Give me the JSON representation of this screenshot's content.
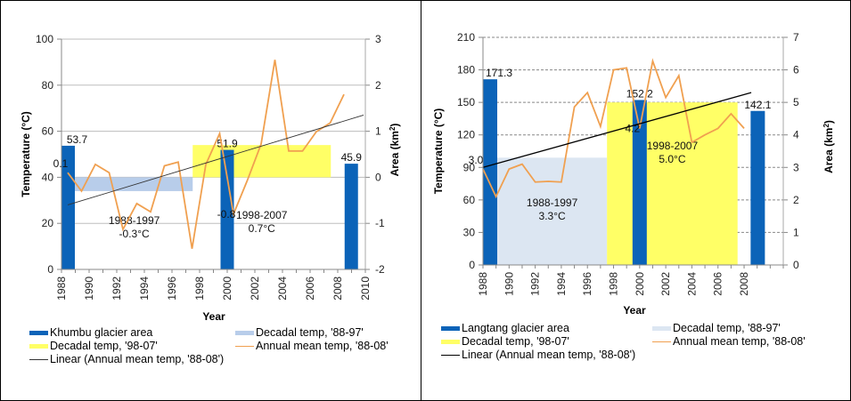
{
  "chart_data": [
    {
      "type": "bar",
      "id": "khumbu",
      "title": "",
      "xlabel": "Year",
      "ylabel": "Temperature (°C)",
      "y2label": "Area (km²)",
      "ylim": [
        0,
        100
      ],
      "y2lim": [
        -2,
        3
      ],
      "xlim": [
        1988,
        2010
      ],
      "grid": true,
      "grid_style": "solid",
      "yticks": [
        "0",
        "20",
        "40",
        "60",
        "80",
        "100"
      ],
      "y2ticks": [
        "-2",
        "-1",
        "0",
        "1",
        "2",
        "3"
      ],
      "xticks": [
        "1988",
        "1990",
        "1992",
        "1994",
        "1996",
        "1998",
        "2000",
        "2002",
        "2004",
        "2006",
        "2008",
        "2010"
      ],
      "legend_position": "bottom",
      "series": [
        {
          "name": "Khumbu glacier area",
          "kind": "bar",
          "axis": "left",
          "color": "#0b63b8",
          "x": [
            1988,
            2000,
            2009
          ],
          "values": [
            53.7,
            51.9,
            45.9
          ],
          "labels": [
            "53.7",
            "51.9",
            "45.9"
          ]
        },
        {
          "name": "Decadal temp, '88-97'",
          "kind": "band",
          "axis": "right",
          "color": "#b8cdea",
          "x_range": [
            1988,
            1997.5
          ],
          "value": -0.3,
          "annotation": [
            "1988-1997",
            "-0.3°C"
          ]
        },
        {
          "name": "Decadal temp, '98-07'",
          "kind": "band",
          "axis": "right",
          "color": "#ffff66",
          "x_range": [
            1997.5,
            2007.5
          ],
          "value": 0.7,
          "annotation": [
            "1998-2007",
            "0.7°C"
          ]
        },
        {
          "name": "Annual mean temp, '88-08'",
          "kind": "line",
          "axis": "right",
          "color": "#f0a050",
          "x": [
            1988,
            1989,
            1990,
            1991,
            1992,
            1993,
            1994,
            1995,
            1996,
            1997,
            1998,
            1999,
            2000,
            2001,
            2002,
            2003,
            2004,
            2005,
            2006,
            2007,
            2008
          ],
          "values": [
            0.1,
            -0.3,
            0.28,
            0.1,
            -1.13,
            -0.57,
            -0.75,
            0.25,
            0.33,
            -1.55,
            0.28,
            0.95,
            -0.8,
            -0.07,
            0.72,
            2.55,
            0.57,
            0.57,
            0.99,
            1.18,
            1.8
          ],
          "point_labels": [
            {
              "x": 1988,
              "label": "0.1"
            },
            {
              "x": 2000,
              "label": "-0.8"
            }
          ]
        },
        {
          "name": "Linear (Annual mean temp, '88-08')",
          "kind": "trend",
          "axis": "right",
          "color": "#333333",
          "x": [
            1988,
            2010
          ],
          "values": [
            -0.6,
            1.35
          ]
        }
      ]
    },
    {
      "type": "bar",
      "id": "langtang",
      "title": "",
      "xlabel": "Year",
      "ylabel": "Temperature (°C)",
      "y2label": "Area (km²)",
      "ylim": [
        0,
        210
      ],
      "y2lim": [
        0,
        7
      ],
      "xlim": [
        1988,
        2011
      ],
      "grid": true,
      "grid_style": "dashed",
      "yticks": [
        "0",
        "30",
        "60",
        "90",
        "120",
        "150",
        "180",
        "210"
      ],
      "y2ticks": [
        "0",
        "1",
        "2",
        "3",
        "4",
        "5",
        "6",
        "7"
      ],
      "xticks": [
        "1988",
        "1990",
        "1992",
        "1994",
        "1996",
        "1998",
        "2000",
        "2002",
        "2004",
        "2006",
        "2008"
      ],
      "legend_position": "bottom",
      "series": [
        {
          "name": "Langtang glacier area",
          "kind": "bar",
          "axis": "left",
          "color": "#0b63b8",
          "x": [
            1988,
            2000,
            2009
          ],
          "values": [
            171.3,
            152.2,
            142.1
          ],
          "labels": [
            "171.3",
            "152.2",
            "142.1"
          ]
        },
        {
          "name": "Decadal temp, '88-97'",
          "kind": "band",
          "axis": "right",
          "color": "#dce6f2",
          "x_range": [
            1988,
            1997.5
          ],
          "value": 3.3,
          "annotation": [
            "1988-1997",
            "3.3°C"
          ]
        },
        {
          "name": "Decadal temp, '98-07'",
          "kind": "band",
          "axis": "right",
          "color": "#ffff66",
          "x_range": [
            1997.5,
            2007.5
          ],
          "value": 5.0,
          "annotation": [
            "1998-2007",
            "5.0°C"
          ]
        },
        {
          "name": "Annual  mean temp, '88-08'",
          "kind": "line",
          "axis": "right",
          "color": "#f0a050",
          "x": [
            1988,
            1989,
            1990,
            1991,
            1992,
            1993,
            1994,
            1995,
            1996,
            1997,
            1998,
            1999,
            2000,
            2001,
            2002,
            2003,
            2004,
            2005,
            2006,
            2007,
            2008
          ],
          "values": [
            2.95,
            2.1,
            2.95,
            3.1,
            2.55,
            2.57,
            2.55,
            4.86,
            5.3,
            4.26,
            6.0,
            6.06,
            4.2,
            6.27,
            5.15,
            5.82,
            3.77,
            4.0,
            4.2,
            4.65,
            4.2
          ],
          "point_labels": [
            {
              "x": 1988,
              "label": "3.0"
            },
            {
              "x": 2000,
              "label": "4.2"
            }
          ]
        },
        {
          "name": "Linear (Annual  mean temp, '88-08')",
          "kind": "trend",
          "axis": "right",
          "color": "#000000",
          "x": [
            1988,
            2008
          ],
          "values": [
            3.0,
            5.3
          ]
        }
      ]
    }
  ],
  "legends": {
    "khumbu": [
      {
        "label": "Khumbu glacier area",
        "type": "box",
        "color": "#0b63b8"
      },
      {
        "label": "Decadal temp, '88-97'",
        "type": "box",
        "color": "#b8cdea"
      },
      {
        "label": "Decadal temp, '98-07'",
        "type": "box",
        "color": "#ffff66"
      },
      {
        "label": "Annual mean temp, '88-08'",
        "type": "line",
        "color": "#f0a050"
      },
      {
        "label": "Linear (Annual mean temp, '88-08')",
        "type": "line",
        "color": "#333333"
      }
    ],
    "langtang": [
      {
        "label": "Langtang glacier area",
        "type": "box",
        "color": "#0b63b8"
      },
      {
        "label": "Decadal temp, '88-97'",
        "type": "box",
        "color": "#dce6f2"
      },
      {
        "label": "Decadal temp, '98-07'",
        "type": "box",
        "color": "#ffff66"
      },
      {
        "label": "Annual  mean temp, '88-08'",
        "type": "line",
        "color": "#f0a050"
      },
      {
        "label": "Linear (Annual  mean temp, '88-08')",
        "type": "line",
        "color": "#000000"
      }
    ]
  }
}
